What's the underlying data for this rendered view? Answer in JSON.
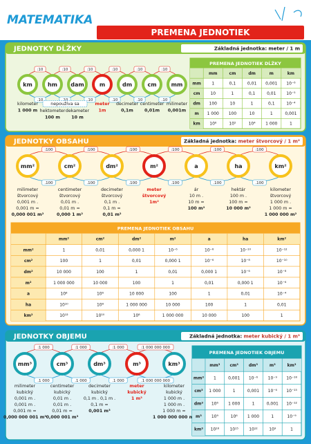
{
  "header": {
    "title": "MATEMATIKA",
    "banner": "PREMENA JEDNOTIEK"
  },
  "sections": [
    {
      "title": "JEDNOTKY DĹŽKY",
      "color": "#8cc63f",
      "background": "#eef6df",
      "base_label": "Základná jednotka:",
      "base_value": "meter / 1 m",
      "units": [
        {
          "symbol": "km",
          "ring": "#8cc63f"
        },
        {
          "symbol": "hm",
          "ring": "#8cc63f"
        },
        {
          "symbol": "dam",
          "ring": "#8cc63f"
        },
        {
          "symbol": "m",
          "ring": "#e2231a"
        },
        {
          "symbol": "dm",
          "ring": "#8cc63f"
        },
        {
          "symbol": "cm",
          "ring": "#8cc63f"
        },
        {
          "symbol": "mm",
          "ring": "#8cc63f"
        }
      ],
      "div_labels": [
        ":10",
        ":10",
        ":10",
        ":10",
        ":10",
        ":10"
      ],
      "mul_labels": [
        ".10",
        ".10",
        ".10",
        ".10",
        ".10",
        ".10"
      ],
      "note": "nepoužíva sa",
      "descriptions": [
        [
          "kilometer",
          "1 000 m"
        ],
        [
          "hektometer",
          "100 m"
        ],
        [
          "dekameter",
          "10 m"
        ],
        [
          "meter",
          "1m"
        ],
        [
          "decimeter",
          "0,1m"
        ],
        [
          "centimeter",
          "0,01m"
        ],
        [
          "milimeter",
          "0,001m"
        ]
      ],
      "table": {
        "title": "PREMENA JEDNOTIEK DĹŽKY",
        "header": [
          "mm",
          "cm",
          "dm",
          "m",
          "km"
        ],
        "rows": [
          [
            "mm",
            "1",
            "0,1",
            "0,01",
            "0,001",
            "10⁻⁶"
          ],
          [
            "cm",
            "10",
            "1",
            "0,1",
            "0,01",
            "10⁻⁵"
          ],
          [
            "dm",
            "100",
            "10",
            "1",
            "0,1",
            "10⁻⁴"
          ],
          [
            "m",
            "1 000",
            "100",
            "10",
            "1",
            "0,001"
          ],
          [
            "km",
            "10⁶",
            "10⁵",
            "10⁴",
            "1 000",
            "1"
          ]
        ]
      }
    },
    {
      "title": "JEDNOTKY OBSAHU",
      "color": "#f7a823",
      "background": "#fff7e0",
      "base_label": "Základná jednotka:",
      "base_value": "meter štvorcový / 1 m²",
      "units": [
        {
          "symbol": "mm²",
          "ring": "#f7c21d"
        },
        {
          "symbol": "cm²",
          "ring": "#f7c21d"
        },
        {
          "symbol": "dm²",
          "ring": "#f7c21d"
        },
        {
          "symbol": "m²",
          "ring": "#e2231a"
        },
        {
          "symbol": "a",
          "ring": "#f7c21d"
        },
        {
          "symbol": "ha",
          "ring": "#f7c21d"
        },
        {
          "symbol": "km²",
          "ring": "#f7c21d"
        }
      ],
      "div_labels": [
        ":100",
        ":100",
        ":100",
        ":100",
        ":100",
        ":100"
      ],
      "mul_labels": [
        ".100",
        ".100",
        ".100",
        ".100",
        ".100",
        ".100"
      ],
      "descriptions": [
        [
          "milimeter",
          "štvorcový",
          "0,001 m .",
          "0,001 m =",
          "0,000 001 m²"
        ],
        [
          "centimeter",
          "štvorcový",
          "0,01 m .",
          "0,01 m =",
          "0,000 1 m²"
        ],
        [
          "decimeter",
          "štvorcový",
          "0,1 m .",
          "0,1 m =",
          "0,01 m²"
        ],
        [
          "meter",
          "štvorcový",
          "1m²"
        ],
        [
          "ár",
          "10 m .",
          "10 m =",
          "100 m²"
        ],
        [
          "hektár",
          "100 m .",
          "100 m =",
          "10 000 m²"
        ],
        [
          "kilometer",
          "štvorcový",
          "1 000 m .",
          "1 000 m =",
          "1 000 000 m²"
        ]
      ],
      "table": {
        "title": "PREMENA JEDNOTIEK OBSAHU",
        "header": [
          "mm²",
          "cm²",
          "dm²",
          "m²",
          "a",
          "ha",
          "km²"
        ],
        "rows": [
          [
            "mm²",
            "1",
            "0,01",
            "0,000 1",
            "10⁻⁶",
            "10⁻⁸",
            "10⁻¹⁰",
            "10⁻¹²"
          ],
          [
            "cm²",
            "100",
            "1",
            "0,01",
            "0,000 1",
            "10⁻⁶",
            "10⁻⁸",
            "10⁻¹⁰"
          ],
          [
            "dm²",
            "10 000",
            "100",
            "1",
            "0,01",
            "0,000 1",
            "10⁻⁶",
            "10⁻⁸"
          ],
          [
            "m²",
            "1 000 000",
            "10 000",
            "100",
            "1",
            "0,01",
            "0,000 1",
            "10⁻⁶"
          ],
          [
            "a",
            "10⁸",
            "10⁶",
            "10 000",
            "100",
            "1",
            "0,01",
            "10⁻⁴"
          ],
          [
            "ha",
            "10¹⁰",
            "10⁸",
            "1 000 000",
            "10 000",
            "100",
            "1",
            "0,01"
          ],
          [
            "km²",
            "10¹²",
            "10¹⁰",
            "10⁸",
            "1 000 000",
            "10 000",
            "100",
            "1"
          ]
        ]
      }
    },
    {
      "title": "JEDNOTKY OBJEMU",
      "color": "#1aa3b0",
      "background": "#e3f4f7",
      "base_label": "Základná jednotka:",
      "base_value": "meter kubický / 1 m³",
      "units": [
        {
          "symbol": "mm³",
          "ring": "#1aa3b0"
        },
        {
          "symbol": "cm³",
          "ring": "#1aa3b0"
        },
        {
          "symbol": "dm³",
          "ring": "#1aa3b0"
        },
        {
          "symbol": "m³",
          "ring": "#e2231a"
        },
        {
          "symbol": "km³",
          "ring": "#1aa3b0"
        }
      ],
      "div_labels": [
        ":1 000",
        ":1 000",
        ":1 000",
        ":1 000 000 000"
      ],
      "mul_labels": [
        ".1 000",
        ".1 000",
        ".1 000",
        ".1 000 000 000"
      ],
      "descriptions": [
        [
          "milimeter",
          "kubický",
          "0,001 m .",
          "0,001 m .",
          "0,001 m =",
          "0,000 000 001 m³"
        ],
        [
          "centimeter",
          "kubický",
          "0,01 m .",
          "0,01 m .",
          "0,01 m =",
          "0,000 001 m³"
        ],
        [
          "decimeter",
          "kubický",
          "0,1 m . 0,1 m .",
          "0,1 m =",
          "0,001 m³"
        ],
        [
          "meter",
          "kubický",
          "1 m³"
        ],
        [
          "kilometer",
          "kubický",
          "1 000 m .",
          "1 000 m .",
          "1 000 m =",
          "1 000 000 000 m³"
        ]
      ],
      "table": {
        "title": "PREMENA JEDNOTIEK OBJEMU",
        "header": [
          "mm³",
          "cm³",
          "dm³",
          "m³",
          "km³"
        ],
        "rows": [
          [
            "mm³",
            "1",
            "0,001",
            "10⁻⁶",
            "10⁻⁹",
            "10⁻¹⁸"
          ],
          [
            "cm³",
            "1 000",
            "1",
            "0,001",
            "10⁻⁶",
            "10⁻¹⁵"
          ],
          [
            "dm³",
            "10⁶",
            "1 000",
            "1",
            "0,001",
            "10⁻¹²"
          ],
          [
            "m³",
            "10⁹",
            "10⁶",
            "1 000",
            "1",
            "10⁻⁹"
          ],
          [
            "km³",
            "10¹⁸",
            "10¹⁵",
            "10¹²",
            "10⁹",
            "1"
          ]
        ]
      }
    }
  ]
}
